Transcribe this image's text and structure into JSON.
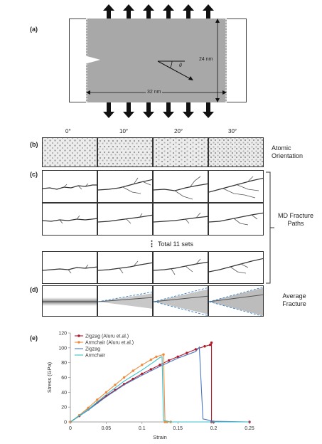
{
  "panel_a": {
    "label": "(a)",
    "height_text": "24 nm",
    "width_text": "32 nm",
    "angle_text": "θ"
  },
  "panel_b": {
    "label": "(b)",
    "angles": [
      "0°",
      "10°",
      "20°",
      "30°"
    ],
    "side_label": "Atomic Orientation"
  },
  "panel_c": {
    "label": "(c)",
    "dots": "⋮",
    "total_text": "Total 11 sets",
    "side_label": "MD Fracture Paths"
  },
  "panel_d": {
    "label": "(d)",
    "side_label": "Average Fracture"
  },
  "panel_e": {
    "label": "(e)"
  },
  "chart_data": {
    "type": "line",
    "xlabel": "Strain",
    "ylabel": "Stress (GPa)",
    "xlim": [
      0,
      0.25
    ],
    "ylim": [
      0,
      120
    ],
    "xticks": [
      "0",
      "0.05",
      "0.1",
      "0.15",
      "0.2",
      "0.25"
    ],
    "yticks": [
      "0",
      "20",
      "40",
      "60",
      "80",
      "100",
      "120"
    ],
    "legend_position": "top-left",
    "series": [
      {
        "name": "Zigzag (Aluru et.al.)",
        "color": "#b2182b",
        "marker": "circle",
        "x": [
          0,
          0.0125,
          0.025,
          0.0375,
          0.05,
          0.0625,
          0.075,
          0.0875,
          0.1,
          0.1125,
          0.125,
          0.1375,
          0.15,
          0.1625,
          0.175,
          0.1875,
          0.195,
          0.197,
          0.197,
          0.2,
          0.25
        ],
        "y": [
          0,
          8,
          17,
          26,
          35,
          43,
          51,
          58,
          65,
          71,
          77,
          83,
          88,
          93,
          98,
          102,
          104,
          107,
          0,
          0,
          0
        ]
      },
      {
        "name": "Armchair (Aluru et.al.)",
        "color": "#ef8a3a",
        "marker": "circle",
        "x": [
          0,
          0.0125,
          0.025,
          0.0375,
          0.05,
          0.0625,
          0.075,
          0.0875,
          0.1,
          0.1125,
          0.12,
          0.13,
          0.132,
          0.135,
          0.14
        ],
        "y": [
          0,
          9,
          19,
          30,
          40,
          50,
          60,
          69,
          77,
          84,
          88,
          91,
          0,
          0,
          0
        ]
      },
      {
        "name": "Zigzag",
        "color": "#4a78c2",
        "marker": "none",
        "x": [
          0,
          0.025,
          0.05,
          0.075,
          0.1,
          0.125,
          0.15,
          0.175,
          0.18,
          0.185,
          0.2,
          0.25
        ],
        "y": [
          0,
          16,
          34,
          50,
          63,
          75,
          86,
          95,
          101,
          4,
          1,
          0
        ]
      },
      {
        "name": "Armchair",
        "color": "#36c1c9",
        "marker": "none",
        "x": [
          0,
          0.025,
          0.05,
          0.075,
          0.1,
          0.115,
          0.125,
          0.128,
          0.13,
          0.14,
          0.25
        ],
        "y": [
          0,
          17,
          37,
          55,
          70,
          80,
          87,
          88,
          2,
          0,
          0
        ]
      }
    ]
  }
}
